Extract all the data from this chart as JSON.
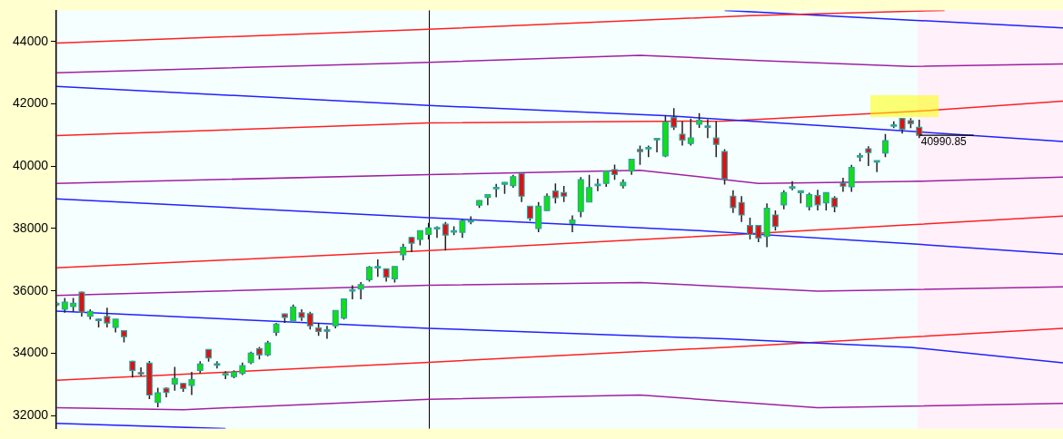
{
  "chart_data": {
    "type": "candlestick",
    "categories": [
      null,
      null,
      null,
      null,
      null,
      null,
      null,
      null,
      null,
      null,
      null,
      null,
      null,
      null,
      null,
      null,
      null,
      null,
      null,
      null,
      null,
      null,
      null,
      null,
      null,
      null,
      null,
      null,
      null,
      null,
      null,
      null,
      null,
      null,
      null,
      null,
      null,
      null,
      null,
      null,
      null,
      null,
      null,
      null,
      null,
      null,
      null,
      null,
      null,
      null,
      null,
      null,
      null,
      null,
      null,
      null,
      null,
      null,
      null,
      null,
      null,
      null,
      null,
      null,
      null,
      null,
      null,
      null,
      null,
      null,
      null,
      null,
      null,
      null,
      null,
      null,
      null,
      null,
      null,
      null,
      null,
      null,
      null,
      null,
      null,
      null,
      null,
      null,
      null,
      null,
      null,
      null,
      null,
      null,
      null,
      null,
      null,
      null,
      null,
      null,
      null,
      null,
      null,
      null,
      null,
      null,
      null,
      null,
      null,
      null,
      null,
      null,
      null,
      null,
      null,
      null,
      null,
      null,
      null,
      null
    ],
    "ohlc": [
      [
        35600,
        35650,
        35500,
        35550
      ],
      [
        35410,
        35770,
        35300,
        35640
      ],
      [
        35500,
        35770,
        35330,
        35600
      ],
      [
        35960,
        35980,
        35180,
        35320
      ],
      [
        35190,
        35410,
        35080,
        35340
      ],
      [
        35090,
        35110,
        34830,
        35080
      ],
      [
        35180,
        35460,
        34830,
        34970
      ],
      [
        34830,
        35100,
        34670,
        35090
      ],
      [
        34720,
        34730,
        34350,
        34530
      ],
      [
        33740,
        33760,
        33220,
        33450
      ],
      [
        33380,
        33550,
        33270,
        33370
      ],
      [
        33680,
        33750,
        32530,
        32660
      ],
      [
        32420,
        32890,
        32270,
        32730
      ],
      [
        32875,
        32910,
        32590,
        32740
      ],
      [
        33010,
        33560,
        32800,
        33190
      ],
      [
        33030,
        33040,
        32760,
        32870
      ],
      [
        32970,
        33400,
        32660,
        33150
      ],
      [
        33450,
        33740,
        33360,
        33650
      ],
      [
        34120,
        34130,
        33730,
        33850
      ],
      [
        33660,
        33740,
        33510,
        33650
      ],
      [
        33300,
        33420,
        33170,
        33350
      ],
      [
        33250,
        33450,
        33200,
        33400
      ],
      [
        33350,
        33700,
        33300,
        33600
      ],
      [
        33700,
        34050,
        33650,
        34000
      ],
      [
        34150,
        34200,
        33800,
        33950
      ],
      [
        33950,
        34400,
        33900,
        34330
      ],
      [
        34670,
        34970,
        34555,
        34930
      ],
      [
        35260,
        35270,
        34970,
        35150
      ],
      [
        35040,
        35560,
        35040,
        35480
      ],
      [
        35300,
        35410,
        35040,
        35150
      ],
      [
        35270,
        35330,
        34760,
        34880
      ],
      [
        34810,
        34970,
        34555,
        34700
      ],
      [
        34750,
        34880,
        34460,
        34740
      ],
      [
        34880,
        35380,
        34800,
        35370
      ],
      [
        35130,
        35750,
        35080,
        35740
      ],
      [
        36030,
        36180,
        35730,
        36040
      ],
      [
        36060,
        36280,
        35730,
        36200
      ],
      [
        36360,
        36800,
        36300,
        36760
      ],
      [
        36770,
        37010,
        36450,
        36780
      ],
      [
        36710,
        36720,
        36300,
        36440
      ],
      [
        36390,
        36790,
        36270,
        36780
      ],
      [
        37160,
        37510,
        36980,
        37400
      ],
      [
        37715,
        37730,
        37240,
        37530
      ],
      [
        37650,
        37940,
        37460,
        37930
      ],
      [
        37810,
        38180,
        37650,
        38020
      ],
      [
        38010,
        38070,
        37700,
        38030
      ],
      [
        38140,
        38210,
        37290,
        37790
      ],
      [
        37920,
        38070,
        37790,
        37930
      ],
      [
        37880,
        38300,
        37700,
        38250
      ],
      [
        38250,
        38390,
        38140,
        38260
      ],
      [
        38750,
        38910,
        38660,
        38900
      ],
      [
        39000,
        39090,
        38750,
        39085
      ],
      [
        39310,
        39430,
        39000,
        39320
      ],
      [
        39420,
        39490,
        39110,
        39480
      ],
      [
        39380,
        39720,
        39310,
        39665
      ],
      [
        39760,
        39770,
        38850,
        39040
      ],
      [
        38715,
        38720,
        38250,
        38330
      ],
      [
        38000,
        38850,
        37880,
        38715
      ],
      [
        38575,
        39130,
        38570,
        39040
      ],
      [
        39205,
        39450,
        38810,
        38990
      ],
      [
        39150,
        39370,
        38850,
        39040
      ],
      [
        38160,
        38420,
        37880,
        38270
      ],
      [
        38550,
        39650,
        38360,
        39565
      ],
      [
        38850,
        39720,
        38850,
        39315
      ],
      [
        39400,
        39600,
        39200,
        39420
      ],
      [
        39450,
        39850,
        39340,
        39840
      ],
      [
        39890,
        40050,
        39560,
        39730
      ],
      [
        39380,
        39580,
        39290,
        39480
      ],
      [
        39840,
        40230,
        39720,
        40220
      ],
      [
        40535,
        40660,
        40040,
        40470
      ],
      [
        40590,
        40660,
        40290,
        40600
      ],
      [
        40880,
        40900,
        40440,
        40890
      ],
      [
        40330,
        41625,
        40290,
        41420
      ],
      [
        41560,
        41860,
        41165,
        41255
      ],
      [
        41025,
        41440,
        40660,
        40840
      ],
      [
        40730,
        41525,
        40660,
        40905
      ],
      [
        41350,
        41700,
        41230,
        41470
      ],
      [
        41290,
        41505,
        40905,
        41280
      ],
      [
        40905,
        41440,
        40290,
        40700
      ],
      [
        40470,
        40545,
        39410,
        39590
      ],
      [
        39040,
        39225,
        38500,
        38670
      ],
      [
        38835,
        39040,
        38210,
        38435
      ],
      [
        38095,
        38345,
        37650,
        37810
      ],
      [
        38095,
        38100,
        37560,
        37700
      ],
      [
        37745,
        38810,
        37400,
        38650
      ],
      [
        38435,
        38580,
        37930,
        38070
      ],
      [
        38760,
        39225,
        38620,
        39150
      ],
      [
        39330,
        39520,
        39225,
        39340
      ],
      [
        39150,
        39220,
        38810,
        39213
      ],
      [
        38700,
        39150,
        38580,
        39085
      ],
      [
        39060,
        39240,
        38580,
        38760
      ],
      [
        38825,
        39160,
        38580,
        39150
      ],
      [
        38975,
        39040,
        38520,
        38700
      ],
      [
        39455,
        39630,
        39180,
        39360
      ],
      [
        39340,
        40040,
        39180,
        39960
      ],
      [
        40330,
        40420,
        40150,
        40340
      ],
      [
        40560,
        40640,
        40010,
        40440
      ],
      [
        40170,
        40180,
        39810,
        40180
      ],
      [
        40425,
        41035,
        40290,
        40820
      ],
      [
        41320,
        41440,
        41225,
        41330
      ],
      [
        41530,
        41540,
        41045,
        41190
      ],
      [
        41460,
        41540,
        41220,
        41370
      ],
      [
        41250,
        41490,
        40900,
        40990.85
      ],
      null,
      null,
      null,
      null,
      null,
      null,
      null,
      null,
      null,
      null,
      null,
      null,
      null,
      null,
      null,
      null,
      null
    ],
    "series": [
      {
        "type": "line",
        "color": "#ff2020",
        "values": [
          43950,
          null,
          null,
          null,
          null,
          null,
          null,
          null,
          null,
          null,
          null,
          null,
          null,
          null,
          null,
          null,
          null,
          null,
          null,
          null,
          null,
          null,
          null,
          null,
          null,
          null,
          null,
          null,
          null,
          null,
          null,
          null,
          null,
          null,
          null,
          null,
          null,
          null,
          null,
          null,
          null,
          null,
          null,
          null,
          44390,
          null,
          null,
          null,
          null,
          null,
          null,
          null,
          null,
          null,
          null,
          null,
          null,
          null,
          null,
          null,
          null,
          null,
          null,
          null,
          null,
          null,
          null,
          null,
          null,
          null,
          null,
          null,
          null,
          null,
          null,
          null,
          null,
          null,
          null,
          null,
          null,
          null,
          44830,
          null,
          null,
          null,
          null,
          null,
          null,
          null,
          null,
          null,
          null,
          null,
          null,
          null,
          null,
          null,
          null,
          null,
          null,
          null,
          null,
          null,
          null,
          45000,
          null,
          null,
          null,
          null,
          null,
          null,
          null,
          null,
          null,
          null,
          null,
          null,
          null,
          null
        ]
      },
      {
        "type": "line",
        "color": "#2020ff",
        "values": [
          null,
          null,
          null,
          null,
          null,
          null,
          null,
          null,
          null,
          null,
          null,
          null,
          null,
          null,
          null,
          null,
          null,
          null,
          null,
          null,
          null,
          null,
          null,
          null,
          null,
          null,
          null,
          null,
          null,
          null,
          null,
          null,
          null,
          null,
          null,
          null,
          null,
          null,
          null,
          null,
          null,
          null,
          null,
          null,
          null,
          null,
          null,
          null,
          null,
          null,
          null,
          null,
          null,
          null,
          null,
          null,
          null,
          null,
          null,
          null,
          null,
          null,
          null,
          null,
          null,
          null,
          null,
          null,
          null,
          null,
          null,
          null,
          null,
          null,
          null,
          null,
          null,
          null,
          null,
          45000,
          null,
          null,
          null,
          null,
          null,
          null,
          null,
          null,
          null,
          null,
          null,
          null,
          null,
          null,
          null,
          null,
          null,
          null,
          null,
          null,
          44700,
          null,
          null,
          null,
          null,
          null,
          null,
          null,
          null,
          null,
          null,
          null,
          null,
          null,
          null,
          null,
          null,
          null,
          null,
          44440
        ]
      },
      {
        "type": "line",
        "color": "#a020a0",
        "values": [
          43000,
          null,
          null,
          null,
          null,
          null,
          null,
          null,
          null,
          null,
          null,
          null,
          null,
          null,
          null,
          null,
          null,
          null,
          null,
          null,
          null,
          null,
          null,
          null,
          null,
          null,
          null,
          null,
          null,
          null,
          null,
          null,
          null,
          null,
          null,
          null,
          null,
          null,
          null,
          null,
          null,
          null,
          null,
          null,
          43330,
          null,
          null,
          null,
          null,
          null,
          null,
          null,
          null,
          null,
          null,
          null,
          null,
          null,
          null,
          null,
          null,
          null,
          null,
          null,
          null,
          null,
          null,
          null,
          null,
          43560,
          null,
          null,
          null,
          null,
          null,
          null,
          null,
          null,
          null,
          null,
          null,
          null,
          null,
          43390,
          null,
          null,
          null,
          null,
          null,
          null,
          null,
          null,
          null,
          null,
          null,
          null,
          null,
          null,
          null,
          null,
          null,
          43200,
          null,
          null,
          null,
          null,
          null,
          null,
          null,
          null,
          null,
          null,
          null,
          null,
          null,
          null,
          null,
          null,
          null,
          43280
        ]
      },
      {
        "type": "line",
        "color": "#2020ff",
        "values": [
          42560,
          null,
          null,
          null,
          null,
          null,
          null,
          null,
          null,
          null,
          null,
          null,
          null,
          null,
          null,
          null,
          null,
          null,
          null,
          null,
          null,
          null,
          null,
          null,
          null,
          null,
          null,
          null,
          null,
          null,
          null,
          null,
          null,
          null,
          null,
          null,
          null,
          null,
          null,
          null,
          null,
          null,
          null,
          null,
          41950,
          null,
          null,
          null,
          null,
          null,
          null,
          null,
          null,
          null,
          null,
          null,
          null,
          null,
          null,
          null,
          null,
          null,
          null,
          null,
          null,
          null,
          null,
          null,
          null,
          null,
          null,
          null,
          41620,
          null,
          null,
          null,
          null,
          null,
          null,
          null,
          null,
          null,
          null,
          null,
          null,
          null,
          null,
          null,
          null,
          null,
          null,
          null,
          null,
          null,
          null,
          null,
          null,
          null,
          null,
          null,
          null,
          41120,
          null,
          null,
          null,
          null,
          null,
          null,
          null,
          null,
          null,
          null,
          null,
          null,
          null,
          null,
          null,
          null,
          null,
          40790
        ]
      },
      {
        "type": "line",
        "color": "#ff2020",
        "values": [
          40980,
          null,
          null,
          null,
          null,
          null,
          null,
          null,
          null,
          null,
          null,
          null,
          null,
          null,
          null,
          null,
          null,
          null,
          null,
          null,
          null,
          null,
          null,
          null,
          null,
          null,
          null,
          null,
          null,
          null,
          null,
          null,
          null,
          null,
          null,
          null,
          null,
          null,
          null,
          null,
          null,
          null,
          null,
          null,
          41390,
          null,
          null,
          null,
          null,
          null,
          null,
          null,
          null,
          null,
          null,
          null,
          null,
          null,
          null,
          null,
          null,
          null,
          null,
          null,
          null,
          null,
          null,
          null,
          null,
          null,
          null,
          null,
          null,
          null,
          null,
          null,
          null,
          null,
          null,
          41450,
          null,
          null,
          null,
          null,
          null,
          null,
          null,
          null,
          null,
          null,
          null,
          null,
          null,
          null,
          null,
          null,
          null,
          null,
          null,
          null,
          null,
          41750,
          null,
          null,
          null,
          null,
          null,
          null,
          null,
          null,
          null,
          null,
          null,
          null,
          null,
          null,
          null,
          null,
          null,
          42090
        ]
      },
      {
        "type": "line",
        "color": "#a020a0",
        "values": [
          39450,
          null,
          null,
          null,
          null,
          null,
          null,
          null,
          null,
          null,
          null,
          null,
          null,
          null,
          null,
          null,
          null,
          null,
          null,
          null,
          null,
          null,
          null,
          null,
          null,
          null,
          null,
          null,
          null,
          null,
          null,
          null,
          null,
          null,
          null,
          null,
          null,
          null,
          null,
          null,
          null,
          null,
          null,
          null,
          39730,
          null,
          null,
          null,
          null,
          null,
          null,
          null,
          null,
          null,
          null,
          null,
          null,
          null,
          null,
          null,
          null,
          null,
          null,
          null,
          null,
          null,
          null,
          null,
          null,
          39870,
          null,
          null,
          null,
          null,
          null,
          null,
          null,
          null,
          null,
          null,
          null,
          null,
          null,
          39450,
          null,
          null,
          null,
          null,
          null,
          null,
          null,
          null,
          null,
          null,
          null,
          null,
          null,
          null,
          null,
          null,
          null,
          39510,
          null,
          null,
          null,
          null,
          null,
          null,
          null,
          null,
          null,
          null,
          null,
          null,
          null,
          null,
          null,
          null,
          null,
          39650
        ]
      },
      {
        "type": "line",
        "color": "#2020ff",
        "values": [
          38950,
          null,
          null,
          null,
          null,
          null,
          null,
          null,
          null,
          null,
          null,
          null,
          null,
          null,
          null,
          null,
          null,
          null,
          null,
          null,
          null,
          null,
          null,
          null,
          null,
          null,
          null,
          null,
          null,
          null,
          null,
          null,
          null,
          null,
          null,
          null,
          null,
          null,
          null,
          null,
          null,
          null,
          null,
          null,
          38350,
          null,
          null,
          null,
          null,
          null,
          null,
          null,
          null,
          null,
          null,
          null,
          null,
          null,
          null,
          null,
          null,
          null,
          null,
          null,
          null,
          null,
          null,
          null,
          null,
          null,
          null,
          null,
          null,
          null,
          null,
          null,
          37930,
          null,
          null,
          null,
          null,
          null,
          null,
          null,
          null,
          null,
          null,
          null,
          null,
          null,
          null,
          null,
          null,
          null,
          null,
          null,
          null,
          null,
          null,
          null,
          null,
          37510,
          null,
          null,
          null,
          null,
          null,
          null,
          null,
          null,
          null,
          null,
          null,
          null,
          null,
          null,
          null,
          null,
          null,
          37180
        ]
      },
      {
        "type": "line",
        "color": "#ff2020",
        "values": [
          36740,
          null,
          null,
          null,
          null,
          null,
          null,
          null,
          null,
          null,
          null,
          null,
          null,
          null,
          null,
          null,
          null,
          null,
          null,
          null,
          null,
          null,
          null,
          null,
          null,
          null,
          null,
          null,
          null,
          null,
          null,
          null,
          null,
          null,
          null,
          null,
          null,
          null,
          null,
          null,
          null,
          null,
          null,
          null,
          37290,
          null,
          null,
          null,
          null,
          null,
          null,
          null,
          null,
          null,
          null,
          null,
          null,
          null,
          null,
          null,
          null,
          null,
          null,
          null,
          null,
          null,
          null,
          null,
          null,
          null,
          null,
          null,
          null,
          null,
          null,
          null,
          null,
          null,
          null,
          37790,
          null,
          null,
          null,
          null,
          null,
          null,
          null,
          null,
          null,
          null,
          null,
          null,
          null,
          null,
          null,
          null,
          null,
          null,
          null,
          null,
          null,
          38120,
          null,
          null,
          null,
          null,
          null,
          null,
          null,
          null,
          null,
          null,
          null,
          null,
          null,
          null,
          null,
          null,
          null,
          38400
        ]
      },
      {
        "type": "line",
        "color": "#a020a0",
        "values": [
          35850,
          null,
          null,
          null,
          null,
          null,
          null,
          null,
          null,
          null,
          null,
          null,
          null,
          null,
          null,
          null,
          null,
          null,
          null,
          null,
          null,
          null,
          null,
          null,
          null,
          null,
          null,
          null,
          null,
          null,
          null,
          null,
          null,
          null,
          null,
          null,
          null,
          null,
          null,
          null,
          null,
          null,
          null,
          null,
          36180,
          null,
          null,
          null,
          null,
          null,
          null,
          null,
          null,
          null,
          null,
          null,
          null,
          null,
          null,
          null,
          null,
          null,
          null,
          null,
          null,
          null,
          null,
          null,
          null,
          36270,
          null,
          null,
          null,
          null,
          null,
          null,
          null,
          null,
          null,
          null,
          null,
          null,
          null,
          null,
          null,
          null,
          null,
          null,
          null,
          null,
          35990,
          null,
          null,
          null,
          null,
          null,
          null,
          null,
          null,
          null,
          null,
          null,
          null,
          null,
          null,
          null,
          null,
          null,
          null,
          null,
          null,
          null,
          null,
          null,
          null,
          null,
          null,
          null,
          null,
          36130
        ]
      },
      {
        "type": "line",
        "color": "#2020ff",
        "values": [
          35350,
          null,
          null,
          null,
          null,
          null,
          null,
          null,
          null,
          null,
          null,
          null,
          null,
          null,
          null,
          null,
          null,
          null,
          null,
          null,
          null,
          null,
          null,
          null,
          null,
          null,
          null,
          null,
          null,
          null,
          null,
          null,
          null,
          null,
          null,
          null,
          null,
          null,
          null,
          null,
          null,
          null,
          null,
          null,
          34800,
          null,
          null,
          null,
          null,
          null,
          null,
          null,
          null,
          null,
          null,
          null,
          null,
          null,
          null,
          null,
          null,
          null,
          null,
          null,
          null,
          null,
          null,
          null,
          null,
          null,
          null,
          null,
          null,
          null,
          null,
          null,
          null,
          null,
          null,
          34460,
          null,
          null,
          null,
          null,
          null,
          null,
          null,
          null,
          null,
          null,
          null,
          null,
          null,
          null,
          null,
          null,
          null,
          null,
          null,
          null,
          null,
          34190,
          null,
          null,
          null,
          null,
          null,
          null,
          null,
          null,
          null,
          null,
          null,
          null,
          null,
          null,
          null,
          null,
          null,
          33690
        ]
      },
      {
        "type": "line",
        "color": "#ff2020",
        "values": [
          33130,
          null,
          null,
          null,
          null,
          null,
          null,
          null,
          null,
          null,
          null,
          null,
          null,
          null,
          null,
          null,
          null,
          null,
          null,
          null,
          null,
          null,
          null,
          null,
          null,
          null,
          null,
          null,
          null,
          null,
          null,
          null,
          null,
          null,
          null,
          null,
          null,
          null,
          null,
          null,
          null,
          null,
          null,
          null,
          33710,
          null,
          null,
          null,
          null,
          null,
          null,
          null,
          null,
          null,
          null,
          null,
          null,
          null,
          null,
          null,
          null,
          null,
          null,
          null,
          null,
          null,
          null,
          null,
          null,
          null,
          null,
          null,
          null,
          null,
          null,
          null,
          null,
          null,
          null,
          34190,
          null,
          null,
          null,
          null,
          null,
          null,
          null,
          null,
          null,
          null,
          null,
          null,
          null,
          null,
          null,
          null,
          null,
          null,
          null,
          null,
          null,
          34520,
          null,
          null,
          null,
          null,
          null,
          null,
          null,
          null,
          null,
          null,
          null,
          null,
          null,
          null,
          null,
          null,
          null,
          34800
        ]
      },
      {
        "type": "line",
        "color": "#a020a0",
        "values": [
          32250,
          null,
          null,
          null,
          null,
          null,
          null,
          null,
          null,
          null,
          null,
          null,
          null,
          null,
          null,
          32190,
          null,
          null,
          null,
          null,
          null,
          null,
          null,
          null,
          null,
          null,
          null,
          null,
          null,
          null,
          null,
          null,
          null,
          null,
          null,
          null,
          null,
          null,
          null,
          null,
          null,
          null,
          null,
          null,
          32520,
          null,
          null,
          null,
          null,
          null,
          null,
          null,
          null,
          null,
          null,
          null,
          null,
          null,
          null,
          null,
          null,
          null,
          null,
          null,
          null,
          null,
          null,
          null,
          null,
          32660,
          null,
          null,
          null,
          null,
          null,
          null,
          null,
          null,
          null,
          null,
          null,
          null,
          null,
          null,
          null,
          null,
          null,
          null,
          null,
          null,
          32250,
          null,
          null,
          null,
          null,
          null,
          null,
          null,
          null,
          null,
          null,
          null,
          null,
          null,
          null,
          null,
          null,
          null,
          null,
          null,
          null,
          null,
          null,
          null,
          null,
          null,
          null,
          null,
          null,
          32390
        ]
      },
      {
        "type": "line",
        "color": "#2020ff",
        "values": [
          31750,
          null,
          null,
          null,
          null,
          null,
          null,
          null,
          null,
          null,
          null,
          null,
          null,
          null,
          null,
          null,
          null,
          null,
          null,
          null,
          31580,
          null,
          null,
          null,
          null,
          null,
          null,
          null,
          null,
          null,
          null,
          null,
          null,
          null,
          null,
          null,
          null,
          null,
          null,
          null,
          null,
          null,
          null,
          null,
          null,
          null,
          null,
          null,
          null,
          null,
          null,
          null,
          null,
          null,
          null,
          null,
          null,
          null,
          null,
          null,
          null,
          null,
          null,
          null,
          null,
          null,
          null,
          null,
          null,
          null,
          null,
          null,
          null,
          null,
          null,
          null,
          null,
          null,
          null,
          null,
          null,
          null,
          null,
          null,
          null,
          null,
          null,
          null,
          null,
          null,
          null,
          null,
          null,
          null,
          null,
          null,
          null,
          null,
          null,
          null,
          null,
          null,
          null,
          null,
          null,
          null,
          null,
          null,
          null,
          null,
          null,
          null,
          null,
          null,
          null,
          null,
          null,
          null,
          null,
          null
        ]
      }
    ],
    "ylim": [
      31580,
      45000
    ],
    "yticks": [
      32000,
      34000,
      36000,
      38000,
      40000,
      42000,
      44000
    ],
    "tick_labels": "y",
    "annotations": [
      {
        "text": "40990.85",
        "y": 40990.85
      }
    ]
  }
}
